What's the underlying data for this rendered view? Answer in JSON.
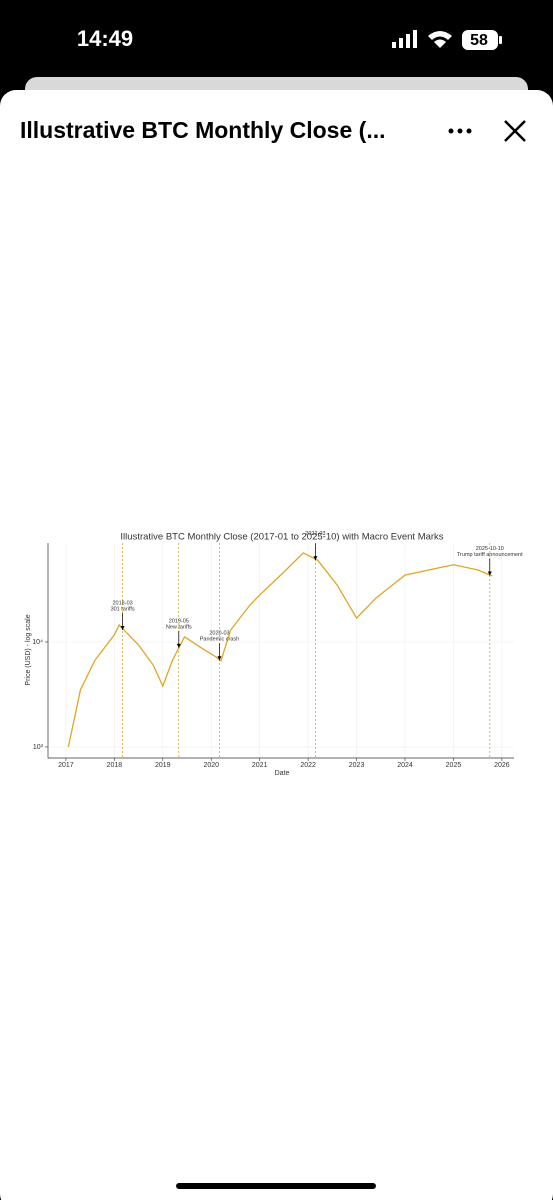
{
  "status_bar": {
    "time": "14:49",
    "battery": "58"
  },
  "header": {
    "title": "Illustrative BTC Monthly Close (..."
  },
  "chart_data": {
    "type": "line",
    "title": "Illustrative BTC Monthly Close (2017-01 to 2025-10) with Macro Event Marks",
    "xlabel": "Date",
    "ylabel": "Price (USD) - log scale",
    "x": [
      2017.05,
      2017.3,
      2017.6,
      2018.0,
      2018.1,
      2018.5,
      2018.8,
      2019.0,
      2019.2,
      2019.45,
      2019.8,
      2020.1,
      2020.2,
      2020.4,
      2020.8,
      2021.0,
      2021.5,
      2021.9,
      2022.2,
      2022.6,
      2023.0,
      2023.4,
      2024.0,
      2024.5,
      2025.0,
      2025.5,
      2025.8
    ],
    "series": [
      {
        "name": "BTC",
        "color": "#e0a526",
        "values": [
          1000,
          3500,
          6700,
          11700,
          14500,
          9350,
          6050,
          3800,
          6700,
          11200,
          8750,
          7200,
          6600,
          13000,
          22500,
          28000,
          46400,
          70500,
          60000,
          34800,
          16900,
          26200,
          43400,
          48600,
          54400,
          48600,
          42500
        ]
      }
    ],
    "xlim": [
      2016.63,
      2026.25
    ],
    "xticks": [
      2017,
      2018,
      2019,
      2020,
      2021,
      2022,
      2023,
      2024,
      2025,
      2026
    ],
    "ylim": [
      785,
      87700
    ],
    "yticks": [
      {
        "value": 1000,
        "label": "10³"
      },
      {
        "value": 10000,
        "label": "10⁴"
      }
    ],
    "log_y": true,
    "grid": true,
    "event_color": "#e0a526",
    "annotations": [
      {
        "date": "2018-03",
        "text": "301 tariffs",
        "x": 2018.17,
        "y": 13000
      },
      {
        "date": "2019-05",
        "text": "New tariffs",
        "x": 2019.33,
        "y": 8800
      },
      {
        "date": "2020-03",
        "text": "Pandemic crash",
        "x": 2020.17,
        "y": 6700
      },
      {
        "date": "2022-03",
        "text": "",
        "x": 2022.15,
        "y": 60000
      },
      {
        "date": "2025-10-10",
        "text": "Trump tariff announcement",
        "x": 2025.75,
        "y": 43000
      }
    ]
  }
}
